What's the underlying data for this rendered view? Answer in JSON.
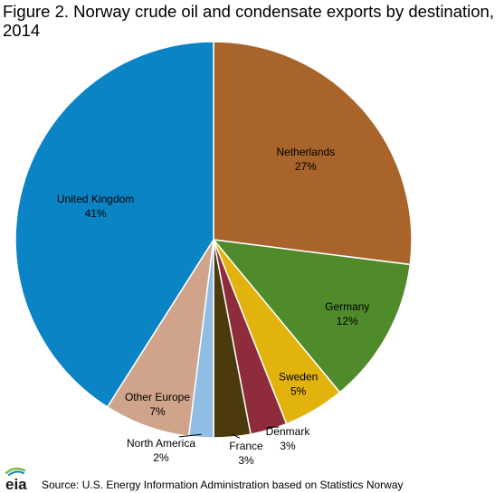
{
  "title": "Figure 2.  Norway crude oil and condensate exports by destination, 2014",
  "source": "Source:  U.S. Energy Information  Administration   based on Statistics Norway",
  "logo_text": "eia",
  "colors": {
    "slice_border": "#ffffff",
    "leader_line": "#000000"
  },
  "chart_data": {
    "type": "pie",
    "unit": "%",
    "title": "Figure 2.  Norway crude oil and condensate exports by destination, 2014",
    "legend": "none",
    "slices": [
      {
        "label": "Netherlands",
        "value": 27,
        "color": "#a8642a"
      },
      {
        "label": "Germany",
        "value": 12,
        "color": "#4f8a2b"
      },
      {
        "label": "Sweden",
        "value": 5,
        "color": "#e3b30d"
      },
      {
        "label": "Denmark",
        "value": 3,
        "color": "#8f2c3b"
      },
      {
        "label": "France",
        "value": 3,
        "color": "#4a3a0c"
      },
      {
        "label": "North America",
        "value": 2,
        "color": "#8fbde4"
      },
      {
        "label": "Other Europe",
        "value": 7,
        "color": "#cfa48a"
      },
      {
        "label": "United Kingdom",
        "value": 41,
        "color": "#0a84c4"
      }
    ]
  }
}
